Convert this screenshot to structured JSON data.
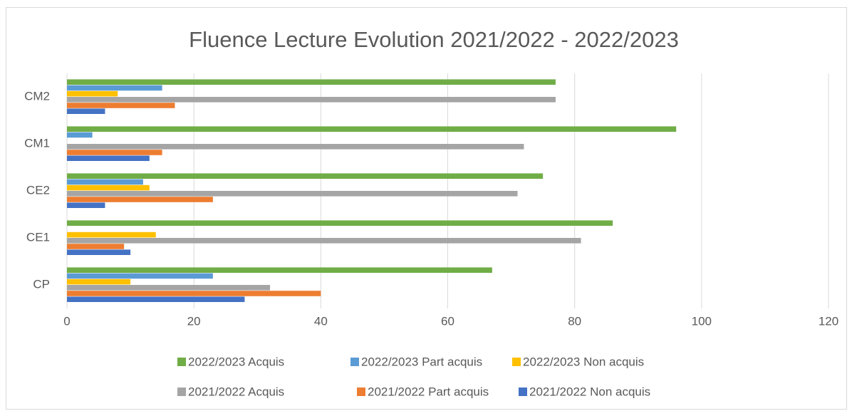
{
  "chart_data": {
    "type": "hbar",
    "title": "Fluence Lecture Evolution 2021/2022 - 2022/2023",
    "categories": [
      "CP",
      "CE1",
      "CE2",
      "CM1",
      "CM2"
    ],
    "series": [
      {
        "name": "2022/2023 Acquis",
        "color": "#70ad47",
        "values": [
          67,
          86,
          75,
          96,
          77
        ]
      },
      {
        "name": "2022/2023 Part acquis",
        "color": "#5b9bd5",
        "values": [
          23,
          0,
          12,
          4,
          15
        ]
      },
      {
        "name": "2022/2023 Non acquis",
        "color": "#ffc000",
        "values": [
          10,
          14,
          13,
          0,
          8
        ]
      },
      {
        "name": "2021/2022 Acquis",
        "color": "#a5a5a5",
        "values": [
          32,
          81,
          71,
          72,
          77
        ]
      },
      {
        "name": "2021/2022 Part acquis",
        "color": "#ed7d31",
        "values": [
          40,
          9,
          23,
          15,
          17
        ]
      },
      {
        "name": "2021/2022 Non acquis",
        "color": "#4472c4",
        "values": [
          28,
          10,
          6,
          13,
          6
        ]
      }
    ],
    "xlim": [
      0,
      120
    ],
    "xticks": [
      0,
      20,
      40,
      60,
      80,
      100,
      120
    ],
    "grid": true
  }
}
